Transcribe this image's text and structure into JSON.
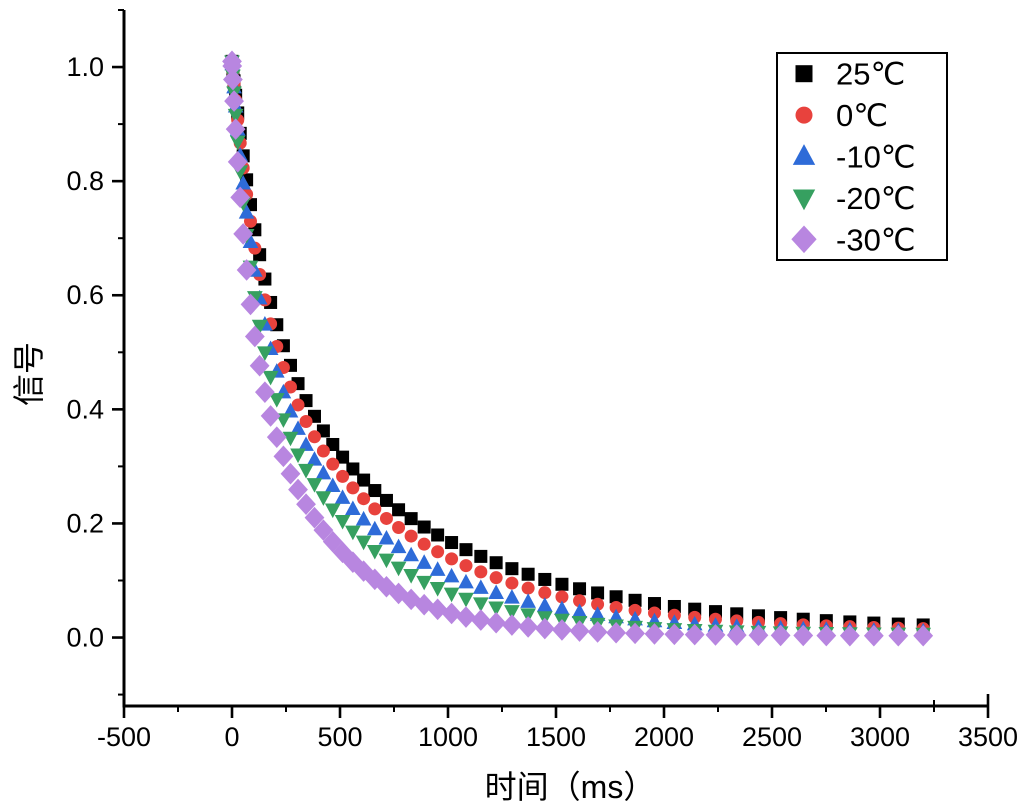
{
  "chart_data": {
    "type": "scatter",
    "title": "",
    "xlabel": "时间（ms）",
    "ylabel": "信号",
    "xlim": [
      -500,
      3500
    ],
    "ylim": [
      -0.12,
      1.1
    ],
    "x_tick_values": [
      -500,
      0,
      500,
      1000,
      1500,
      2000,
      2500,
      3000,
      3500
    ],
    "x_tick_labels": [
      "-500",
      "0",
      "500",
      "1000",
      "1500",
      "2000",
      "2500",
      "3000",
      "3500"
    ],
    "y_tick_values": [
      0.0,
      0.2,
      0.4,
      0.6,
      0.8,
      1.0
    ],
    "y_tick_labels": [
      "0.0",
      "0.2",
      "0.4",
      "0.6",
      "0.8",
      "1.0"
    ],
    "x_minor_step": 250,
    "y_minor_step": 0.1,
    "grid": false,
    "axis_color": "#000000",
    "legend_position": "top-right",
    "sampling": {
      "n_points": 56,
      "t_start_ms": 0,
      "t_end_ms": 3200,
      "spacing": "quadratic"
    },
    "peak_signal": 1.01,
    "series": [
      {
        "label": "25℃",
        "marker": "square",
        "color": "#000000",
        "model": {
          "type": "biexponential",
          "a1": 0.45,
          "tau1_ms": 150,
          "a2": 0.55,
          "tau2_ms": 800,
          "time_scale": 1.0,
          "baseline": 0.012,
          "peak": 1.01
        }
      },
      {
        "label": "0℃",
        "marker": "circle",
        "color": "#e8423d",
        "model": {
          "type": "biexponential",
          "a1": 0.45,
          "tau1_ms": 150,
          "a2": 0.55,
          "tau2_ms": 800,
          "time_scale": 0.87,
          "baseline": 0.01,
          "peak": 1.01
        }
      },
      {
        "label": "-10℃",
        "marker": "triangle-up",
        "color": "#2e6bd8",
        "model": {
          "type": "biexponential",
          "a1": 0.45,
          "tau1_ms": 150,
          "a2": 0.55,
          "tau2_ms": 800,
          "time_scale": 0.74,
          "baseline": 0.008,
          "peak": 1.01
        }
      },
      {
        "label": "-20℃",
        "marker": "triangle-down",
        "color": "#36a060",
        "model": {
          "type": "biexponential",
          "a1": 0.45,
          "tau1_ms": 150,
          "a2": 0.55,
          "tau2_ms": 800,
          "time_scale": 0.62,
          "baseline": 0.006,
          "peak": 1.01
        }
      },
      {
        "label": "-30℃",
        "marker": "diamond",
        "color": "#b886e0",
        "model": {
          "type": "biexponential",
          "a1": 0.45,
          "tau1_ms": 150,
          "a2": 0.55,
          "tau2_ms": 800,
          "time_scale": 0.48,
          "baseline": 0.003,
          "peak": 1.01
        }
      }
    ],
    "sample_table": {
      "t_ms": [
        0,
        200,
        400,
        600,
        800,
        1000,
        1200,
        1600,
        2000,
        2400,
        2800,
        3200
      ],
      "values": {
        "25℃": [
          1.01,
          0.558,
          0.376,
          0.279,
          0.216,
          0.17,
          0.135,
          0.086,
          0.057,
          0.039,
          0.029,
          0.022
        ],
        "0℃": [
          1.01,
          0.519,
          0.34,
          0.246,
          0.185,
          0.141,
          0.108,
          0.065,
          0.041,
          0.027,
          0.02,
          0.016
        ],
        "-10℃": [
          1.01,
          0.475,
          0.3,
          0.21,
          0.151,
          0.11,
          0.08,
          0.045,
          0.027,
          0.018,
          0.013,
          0.01
        ],
        "-20℃": [
          1.01,
          0.426,
          0.258,
          0.171,
          0.116,
          0.079,
          0.055,
          0.028,
          0.016,
          0.01,
          0.008,
          0.007
        ],
        "-30℃": [
          1.01,
          0.359,
          0.2,
          0.119,
          0.072,
          0.044,
          0.027,
          0.012,
          0.006,
          0.004,
          0.003,
          0.003
        ]
      }
    }
  }
}
